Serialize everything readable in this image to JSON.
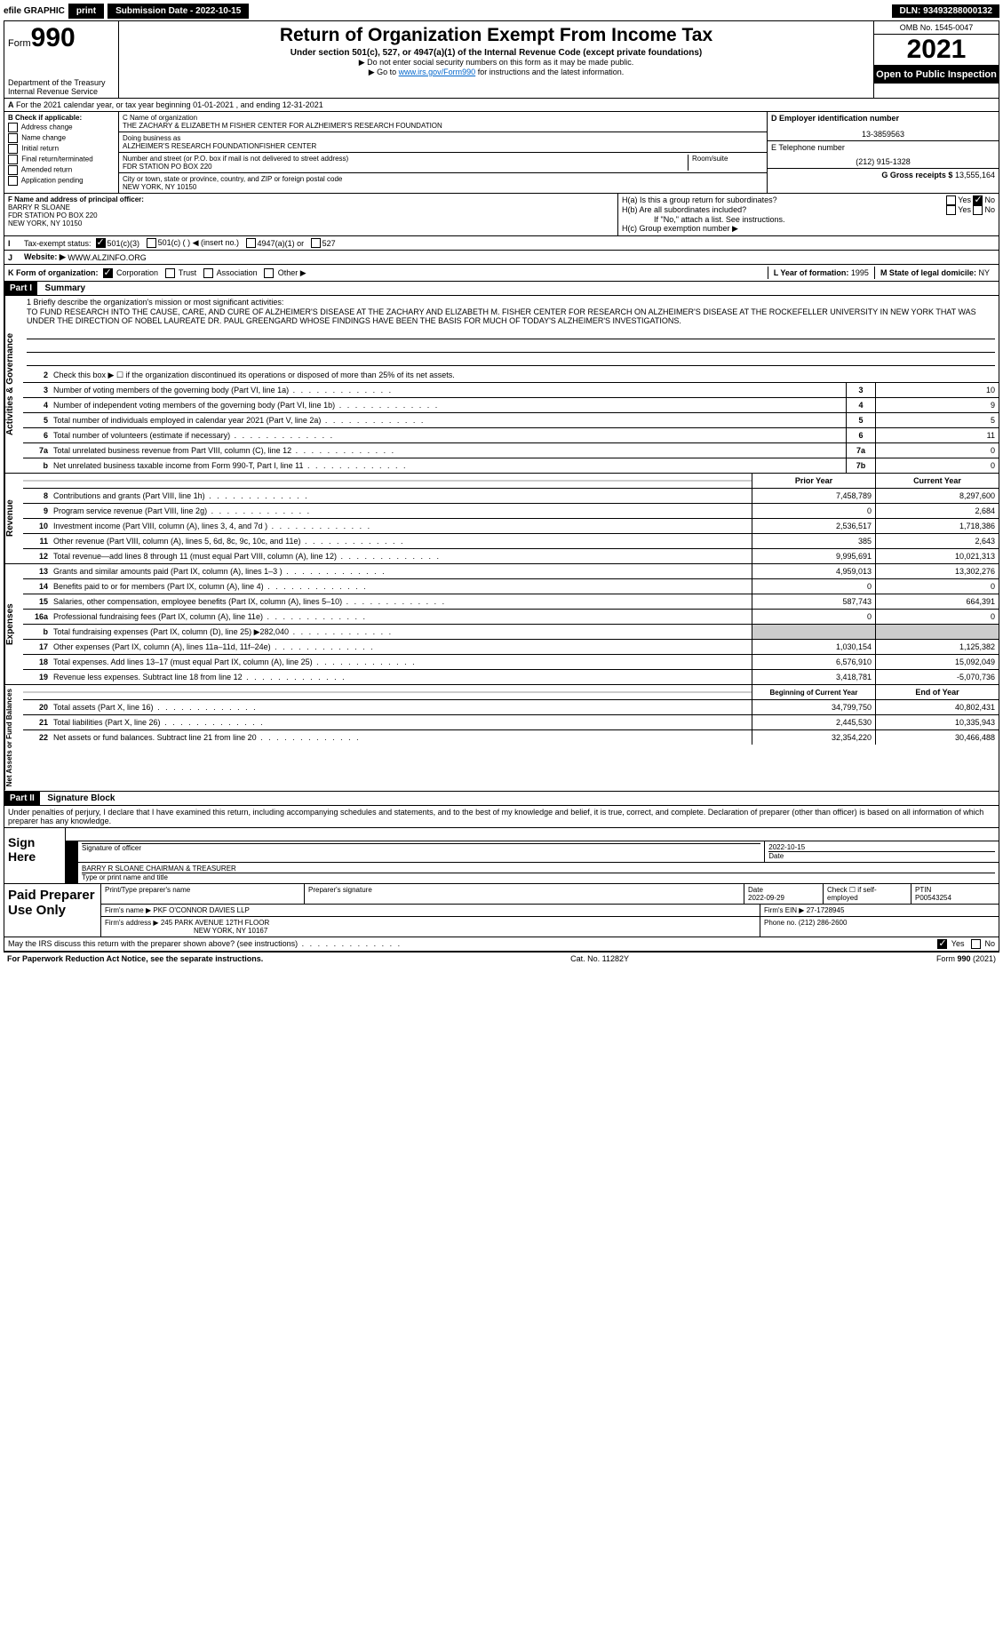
{
  "topbar": {
    "efile": "efile GRAPHIC",
    "print": "print",
    "submission": "Submission Date - 2022-10-15",
    "dln": "DLN: 93493288000132"
  },
  "header": {
    "form_prefix": "Form",
    "form_num": "990",
    "dept": "Department of the Treasury",
    "irs": "Internal Revenue Service",
    "title": "Return of Organization Exempt From Income Tax",
    "subtitle": "Under section 501(c), 527, or 4947(a)(1) of the Internal Revenue Code (except private foundations)",
    "note1": "▶ Do not enter social security numbers on this form as it may be made public.",
    "note2_pre": "▶ Go to ",
    "note2_link": "www.irs.gov/Form990",
    "note2_post": " for instructions and the latest information.",
    "omb": "OMB No. 1545-0047",
    "year": "2021",
    "open": "Open to Public Inspection"
  },
  "row_a": "For the 2021 calendar year, or tax year beginning 01-01-2021    , and ending 12-31-2021",
  "col_b": {
    "title": "B Check if applicable:",
    "items": [
      "Address change",
      "Name change",
      "Initial return",
      "Final return/terminated",
      "Amended return",
      "Application pending"
    ]
  },
  "col_c": {
    "name_label": "C Name of organization",
    "name": "THE ZACHARY & ELIZABETH M FISHER CENTER FOR ALZHEIMER'S RESEARCH FOUNDATION",
    "dba_label": "Doing business as",
    "dba": "ALZHEIMER'S RESEARCH FOUNDATIONFISHER CENTER",
    "addr_label": "Number and street (or P.O. box if mail is not delivered to street address)",
    "room_label": "Room/suite",
    "addr": "FDR STATION PO BOX 220",
    "city_label": "City or town, state or province, country, and ZIP or foreign postal code",
    "city": "NEW YORK, NY  10150"
  },
  "col_d": {
    "label": "D Employer identification number",
    "val": "13-3859563"
  },
  "col_e": {
    "label": "E Telephone number",
    "val": "(212) 915-1328"
  },
  "col_g": {
    "label": "G Gross receipts $",
    "val": "13,555,164"
  },
  "col_f": {
    "label": "F  Name and address of principal officer:",
    "name": "BARRY R SLOANE",
    "addr1": "FDR STATION PO BOX 220",
    "addr2": "NEW YORK, NY  10150"
  },
  "col_h": {
    "ha": "H(a)  Is this a group return for subordinates?",
    "hb": "H(b)  Are all subordinates included?",
    "hb_note": "If \"No,\" attach a list. See instructions.",
    "hc": "H(c)  Group exemption number ▶",
    "yes": "Yes",
    "no": "No"
  },
  "row_i": {
    "label": "Tax-exempt status:",
    "opts": [
      "501(c)(3)",
      "501(c) (  ) ◀ (insert no.)",
      "4947(a)(1) or",
      "527"
    ]
  },
  "row_j": {
    "label": "Website: ▶",
    "val": "WWW.ALZINFO.ORG"
  },
  "row_k": {
    "label": "K Form of organization:",
    "opts": [
      "Corporation",
      "Trust",
      "Association",
      "Other ▶"
    ],
    "l_label": "L Year of formation:",
    "l_val": "1995",
    "m_label": "M State of legal domicile:",
    "m_val": "NY"
  },
  "part1": {
    "header": "Part I",
    "title": "Summary",
    "q1": "1  Briefly describe the organization's mission or most significant activities:",
    "mission": "TO FUND RESEARCH INTO THE CAUSE, CARE, AND CURE OF ALZHEIMER'S DISEASE AT THE ZACHARY AND ELIZABETH M. FISHER CENTER FOR RESEARCH ON ALZHEIMER'S DISEASE AT THE ROCKEFELLER UNIVERSITY IN NEW YORK THAT WAS UNDER THE DIRECTION OF NOBEL LAUREATE DR. PAUL GREENGARD WHOSE FINDINGS HAVE BEEN THE BASIS FOR MUCH OF TODAY'S ALZHEIMER'S INVESTIGATIONS.",
    "q2": "Check this box ▶ ☐  if the organization discontinued its operations or disposed of more than 25% of its net assets.",
    "sidebar1": "Activities & Governance",
    "sidebar2": "Revenue",
    "sidebar3": "Expenses",
    "sidebar4": "Net Assets or Fund Balances",
    "lines_gov": [
      {
        "n": "3",
        "t": "Number of voting members of the governing body (Part VI, line 1a)",
        "box": "3",
        "v": "10"
      },
      {
        "n": "4",
        "t": "Number of independent voting members of the governing body (Part VI, line 1b)",
        "box": "4",
        "v": "9"
      },
      {
        "n": "5",
        "t": "Total number of individuals employed in calendar year 2021 (Part V, line 2a)",
        "box": "5",
        "v": "5"
      },
      {
        "n": "6",
        "t": "Total number of volunteers (estimate if necessary)",
        "box": "6",
        "v": "11"
      },
      {
        "n": "7a",
        "t": "Total unrelated business revenue from Part VIII, column (C), line 12",
        "box": "7a",
        "v": "0"
      },
      {
        "n": "b",
        "t": "Net unrelated business taxable income from Form 990-T, Part I, line 11",
        "box": "7b",
        "v": "0"
      }
    ],
    "hdr_prior": "Prior Year",
    "hdr_curr": "Current Year",
    "lines_rev": [
      {
        "n": "8",
        "t": "Contributions and grants (Part VIII, line 1h)",
        "p": "7,458,789",
        "c": "8,297,600"
      },
      {
        "n": "9",
        "t": "Program service revenue (Part VIII, line 2g)",
        "p": "0",
        "c": "2,684"
      },
      {
        "n": "10",
        "t": "Investment income (Part VIII, column (A), lines 3, 4, and 7d )",
        "p": "2,536,517",
        "c": "1,718,386"
      },
      {
        "n": "11",
        "t": "Other revenue (Part VIII, column (A), lines 5, 6d, 8c, 9c, 10c, and 11e)",
        "p": "385",
        "c": "2,643"
      },
      {
        "n": "12",
        "t": "Total revenue—add lines 8 through 11 (must equal Part VIII, column (A), line 12)",
        "p": "9,995,691",
        "c": "10,021,313"
      }
    ],
    "lines_exp": [
      {
        "n": "13",
        "t": "Grants and similar amounts paid (Part IX, column (A), lines 1–3 )",
        "p": "4,959,013",
        "c": "13,302,276"
      },
      {
        "n": "14",
        "t": "Benefits paid to or for members (Part IX, column (A), line 4)",
        "p": "0",
        "c": "0"
      },
      {
        "n": "15",
        "t": "Salaries, other compensation, employee benefits (Part IX, column (A), lines 5–10)",
        "p": "587,743",
        "c": "664,391"
      },
      {
        "n": "16a",
        "t": "Professional fundraising fees (Part IX, column (A), line 11e)",
        "p": "0",
        "c": "0"
      },
      {
        "n": "b",
        "t": "Total fundraising expenses (Part IX, column (D), line 25) ▶282,040",
        "p": "",
        "c": "",
        "shaded": true
      },
      {
        "n": "17",
        "t": "Other expenses (Part IX, column (A), lines 11a–11d, 11f–24e)",
        "p": "1,030,154",
        "c": "1,125,382"
      },
      {
        "n": "18",
        "t": "Total expenses. Add lines 13–17 (must equal Part IX, column (A), line 25)",
        "p": "6,576,910",
        "c": "15,092,049"
      },
      {
        "n": "19",
        "t": "Revenue less expenses. Subtract line 18 from line 12",
        "p": "3,418,781",
        "c": "-5,070,736"
      }
    ],
    "hdr_beg": "Beginning of Current Year",
    "hdr_end": "End of Year",
    "lines_net": [
      {
        "n": "20",
        "t": "Total assets (Part X, line 16)",
        "p": "34,799,750",
        "c": "40,802,431"
      },
      {
        "n": "21",
        "t": "Total liabilities (Part X, line 26)",
        "p": "2,445,530",
        "c": "10,335,943"
      },
      {
        "n": "22",
        "t": "Net assets or fund balances. Subtract line 21 from line 20",
        "p": "32,354,220",
        "c": "30,466,488"
      }
    ]
  },
  "part2": {
    "header": "Part II",
    "title": "Signature Block",
    "decl": "Under penalties of perjury, I declare that I have examined this return, including accompanying schedules and statements, and to the best of my knowledge and belief, it is true, correct, and complete. Declaration of preparer (other than officer) is based on all information of which preparer has any knowledge."
  },
  "sign": {
    "label": "Sign Here",
    "sig_officer": "Signature of officer",
    "date": "Date",
    "date_val": "2022-10-15",
    "name": "BARRY R SLOANE  CHAIRMAN & TREASURER",
    "name_label": "Type or print name and title"
  },
  "prep": {
    "label": "Paid Preparer Use Only",
    "h1": "Print/Type preparer's name",
    "h2": "Preparer's signature",
    "h3": "Date",
    "h3v": "2022-09-29",
    "h4": "Check ☐ if self-employed",
    "h5": "PTIN",
    "h5v": "P00543254",
    "firm_label": "Firm's name     ▶",
    "firm": "PKF O'CONNOR DAVIES LLP",
    "ein_label": "Firm's EIN ▶",
    "ein": "27-1728945",
    "addr_label": "Firm's address ▶",
    "addr1": "245 PARK AVENUE 12TH FLOOR",
    "addr2": "NEW YORK, NY  10167",
    "phone_label": "Phone no.",
    "phone": "(212) 286-2600"
  },
  "discuss": "May the IRS discuss this return with the preparer shown above? (see instructions)",
  "footer": {
    "left": "For Paperwork Reduction Act Notice, see the separate instructions.",
    "mid": "Cat. No. 11282Y",
    "right": "Form 990 (2021)"
  }
}
